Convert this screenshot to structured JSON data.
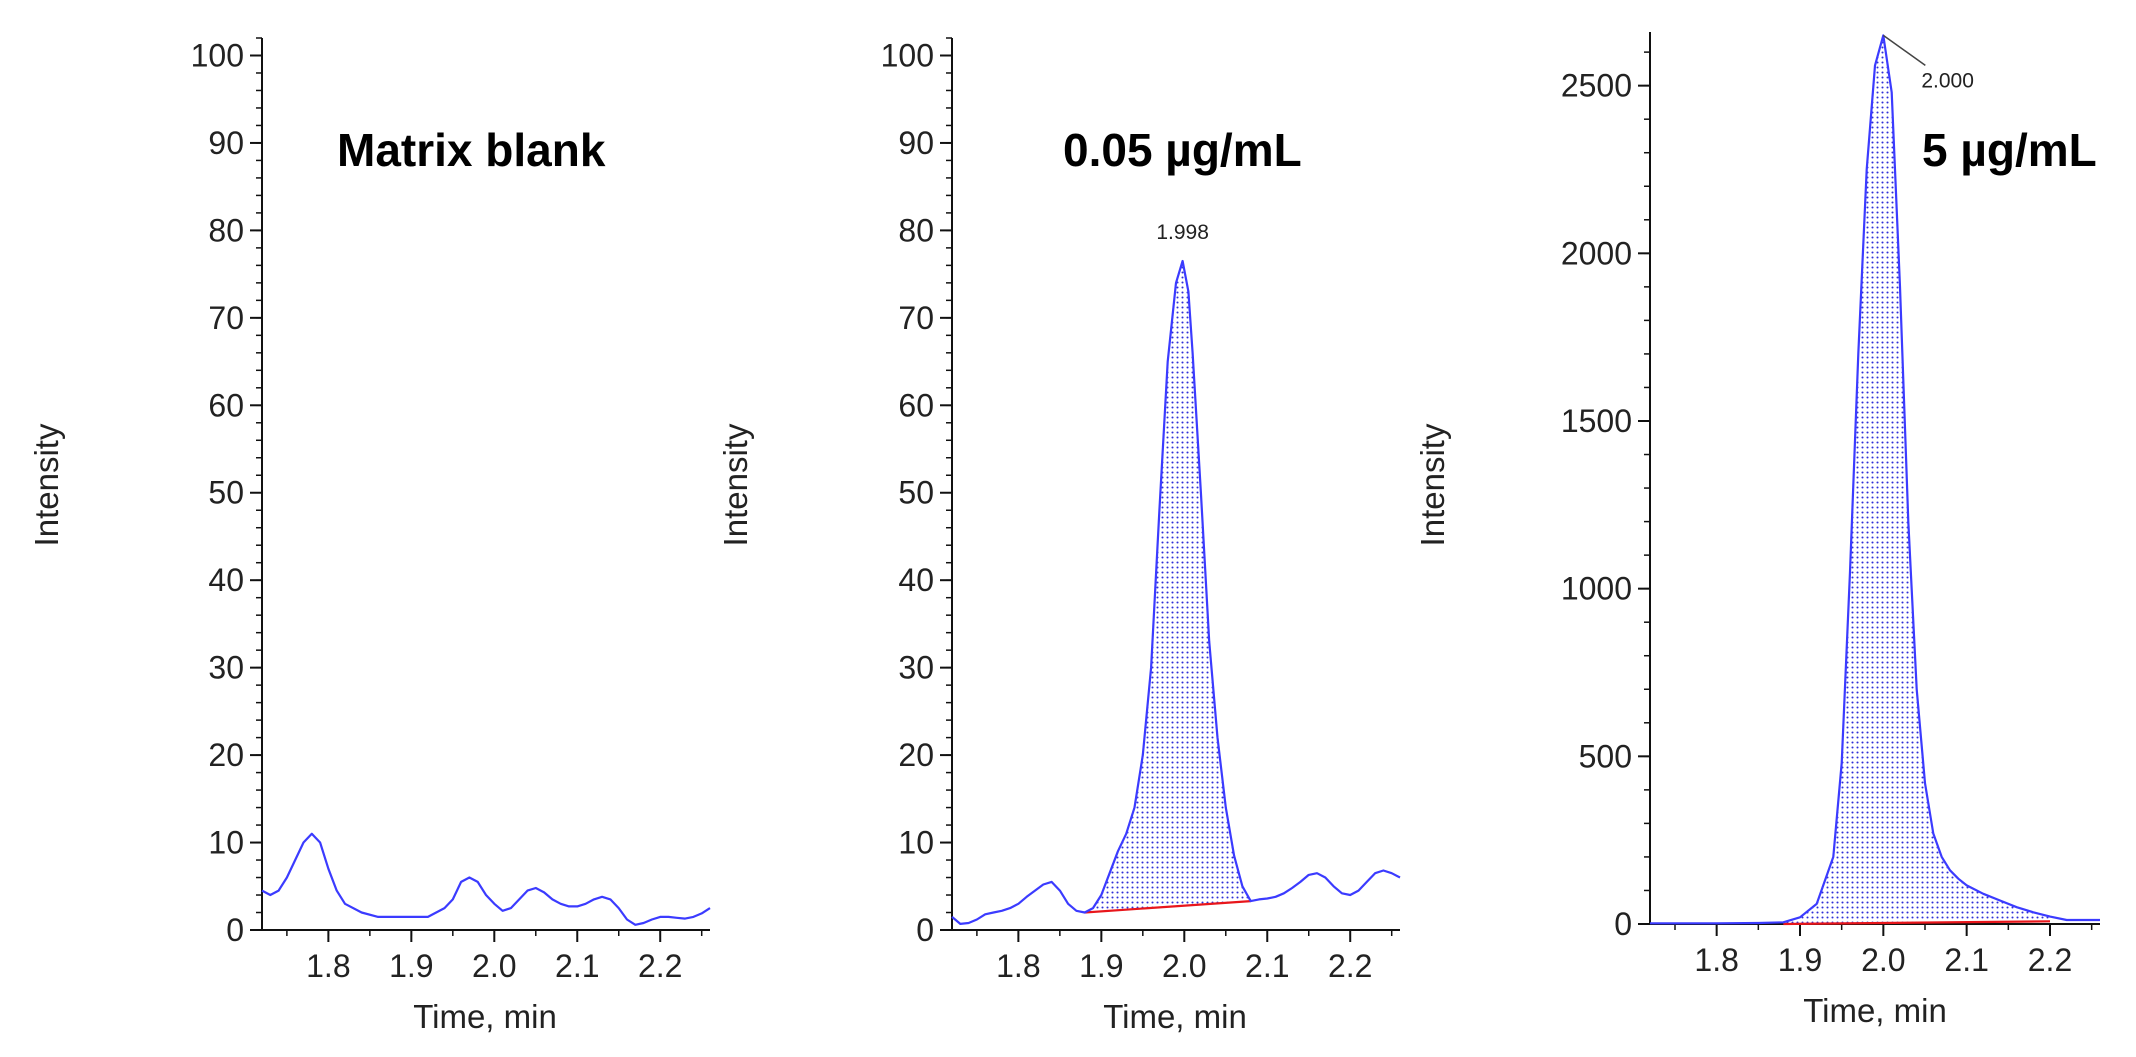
{
  "chart_data": [
    {
      "type": "line",
      "title": "Matrix blank",
      "xlabel": "Time, min",
      "ylabel": "Intensity",
      "xlim": [
        1.72,
        2.26
      ],
      "ylim": [
        0,
        102
      ],
      "xticks": [
        1.8,
        1.9,
        2.0,
        2.1,
        2.2
      ],
      "xtick_labels": [
        "1.8",
        "1.9",
        "2.0",
        "2.1",
        "2.2"
      ],
      "yticks": [
        0,
        10,
        20,
        30,
        40,
        50,
        60,
        70,
        80,
        90,
        100
      ],
      "ytick_labels": [
        "0",
        "10",
        "20",
        "30",
        "40",
        "50",
        "60",
        "70",
        "80",
        "90",
        "100"
      ],
      "series": [
        {
          "color": "#3b3bff",
          "x": [
            1.72,
            1.73,
            1.74,
            1.75,
            1.76,
            1.77,
            1.78,
            1.79,
            1.8,
            1.81,
            1.82,
            1.84,
            1.86,
            1.88,
            1.9,
            1.92,
            1.94,
            1.95,
            1.96,
            1.97,
            1.98,
            1.99,
            2.0,
            2.01,
            2.02,
            2.03,
            2.04,
            2.05,
            2.06,
            2.07,
            2.08,
            2.09,
            2.1,
            2.11,
            2.12,
            2.13,
            2.14,
            2.15,
            2.16,
            2.17,
            2.18,
            2.19,
            2.2,
            2.21,
            2.22,
            2.23,
            2.24,
            2.25,
            2.26
          ],
          "y": [
            4.5,
            4.0,
            4.5,
            6.0,
            8.0,
            10.0,
            11.0,
            10.0,
            7.0,
            4.5,
            3.0,
            2.0,
            1.5,
            1.5,
            1.5,
            1.5,
            2.5,
            3.5,
            5.5,
            6.0,
            5.5,
            4.0,
            3.0,
            2.2,
            2.5,
            3.5,
            4.5,
            4.8,
            4.3,
            3.5,
            3.0,
            2.7,
            2.7,
            3.0,
            3.5,
            3.8,
            3.5,
            2.5,
            1.2,
            0.6,
            0.8,
            1.2,
            1.5,
            1.5,
            1.4,
            1.3,
            1.5,
            1.9,
            2.5
          ]
        }
      ]
    },
    {
      "type": "area",
      "title": "0.05 µg/mL",
      "xlabel": "Time, min",
      "ylabel": "Intensity",
      "xlim": [
        1.72,
        2.26
      ],
      "ylim": [
        0,
        102
      ],
      "xticks": [
        1.8,
        1.9,
        2.0,
        2.1,
        2.2
      ],
      "xtick_labels": [
        "1.8",
        "1.9",
        "2.0",
        "2.1",
        "2.2"
      ],
      "yticks": [
        0,
        10,
        20,
        30,
        40,
        50,
        60,
        70,
        80,
        90,
        100
      ],
      "ytick_labels": [
        "0",
        "10",
        "20",
        "30",
        "40",
        "50",
        "60",
        "70",
        "80",
        "90",
        "100"
      ],
      "peak": {
        "label": "1.998",
        "x": 1.998,
        "y": 76.5
      },
      "integration_start": 1.88,
      "integration_end": 2.08,
      "baseline": {
        "x": [
          1.88,
          2.08
        ],
        "y": [
          2.0,
          3.3
        ],
        "color": "#e8161b"
      },
      "series": [
        {
          "color": "#3b3bff",
          "x": [
            1.72,
            1.73,
            1.74,
            1.75,
            1.76,
            1.77,
            1.78,
            1.79,
            1.8,
            1.81,
            1.82,
            1.83,
            1.84,
            1.85,
            1.86,
            1.87,
            1.88,
            1.89,
            1.9,
            1.91,
            1.92,
            1.93,
            1.94,
            1.95,
            1.96,
            1.97,
            1.98,
            1.99,
            1.998,
            2.005,
            2.01,
            2.02,
            2.03,
            2.04,
            2.05,
            2.06,
            2.07,
            2.08,
            2.09,
            2.1,
            2.11,
            2.12,
            2.13,
            2.14,
            2.15,
            2.16,
            2.17,
            2.18,
            2.19,
            2.2,
            2.21,
            2.22,
            2.23,
            2.24,
            2.25,
            2.26
          ],
          "y": [
            1.5,
            0.7,
            0.8,
            1.2,
            1.8,
            2.0,
            2.2,
            2.5,
            3.0,
            3.8,
            4.5,
            5.2,
            5.5,
            4.5,
            3.0,
            2.2,
            2.0,
            2.5,
            4.0,
            6.5,
            9.0,
            11.0,
            14.0,
            20.0,
            30.0,
            48.0,
            65.0,
            74.0,
            76.5,
            73.0,
            66.0,
            50.0,
            33.0,
            22.0,
            14.0,
            8.5,
            5.0,
            3.3,
            3.5,
            3.6,
            3.8,
            4.2,
            4.8,
            5.5,
            6.3,
            6.5,
            6.0,
            5.0,
            4.2,
            4.0,
            4.5,
            5.5,
            6.5,
            6.8,
            6.5,
            6.0
          ]
        }
      ]
    },
    {
      "type": "area",
      "title": "5 µg/mL",
      "xlabel": "Time, min",
      "ylabel": "Intensity",
      "xlim": [
        1.72,
        2.26
      ],
      "ylim": [
        0,
        2660
      ],
      "xticks": [
        1.8,
        1.9,
        2.0,
        2.1,
        2.2
      ],
      "xtick_labels": [
        "1.8",
        "1.9",
        "2.0",
        "2.1",
        "2.2"
      ],
      "yticks": [
        0,
        500,
        1000,
        1500,
        2000,
        2500
      ],
      "ytick_labels": [
        "0",
        "500",
        "1000",
        "1500",
        "2000",
        "2500"
      ],
      "peak": {
        "label": "2.000",
        "x": 2.0,
        "y": 2650
      },
      "integration_start": 1.88,
      "integration_end": 2.2,
      "baseline": {
        "x": [
          1.88,
          2.2
        ],
        "y": [
          0,
          8
        ],
        "color": "#e8161b"
      },
      "series": [
        {
          "color": "#3b3bff",
          "x": [
            1.72,
            1.8,
            1.85,
            1.88,
            1.9,
            1.92,
            1.94,
            1.95,
            1.96,
            1.97,
            1.98,
            1.99,
            2.0,
            2.01,
            2.02,
            2.03,
            2.04,
            2.05,
            2.06,
            2.07,
            2.08,
            2.09,
            2.1,
            2.12,
            2.14,
            2.16,
            2.18,
            2.2,
            2.22,
            2.24,
            2.26
          ],
          "y": [
            2,
            2,
            3,
            5,
            20,
            60,
            200,
            480,
            1050,
            1700,
            2250,
            2560,
            2650,
            2480,
            1900,
            1200,
            700,
            420,
            270,
            200,
            160,
            135,
            115,
            90,
            70,
            50,
            35,
            22,
            12,
            12,
            12
          ]
        }
      ]
    }
  ]
}
